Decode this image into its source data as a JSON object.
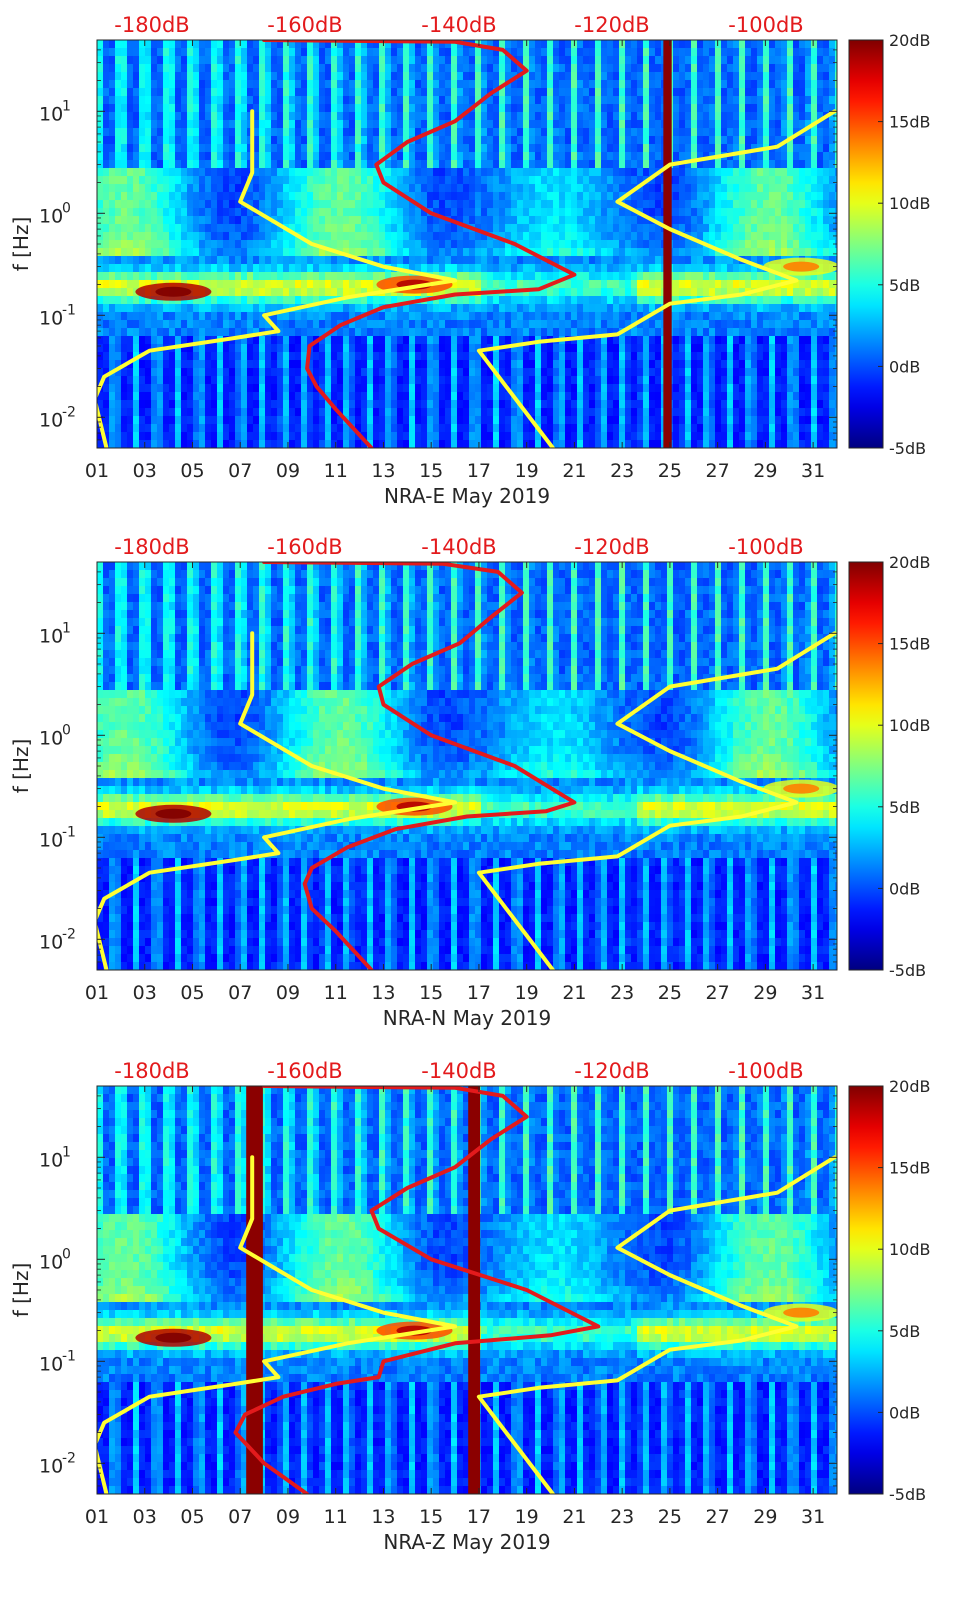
{
  "chart_data": [
    {
      "type": "heatmap",
      "title": "",
      "xlabel": "NRA-E May 2019",
      "ylabel": "f [Hz]",
      "x_ticks": [
        "01",
        "03",
        "05",
        "07",
        "09",
        "11",
        "13",
        "15",
        "17",
        "19",
        "21",
        "23",
        "25",
        "27",
        "29",
        "31"
      ],
      "xlim": [
        1,
        32
      ],
      "y_scale": "log",
      "ylim": [
        0.005,
        50
      ],
      "y_ticks": [
        {
          "base": "10",
          "exp": "-2"
        },
        {
          "base": "10",
          "exp": "-1"
        },
        {
          "base": "10",
          "exp": "0"
        },
        {
          "base": "10",
          "exp": "1"
        }
      ],
      "top_axis_labels": [
        "-180dB",
        "-160dB",
        "-140dB",
        "-120dB",
        "-100dB"
      ],
      "colorbar": {
        "labels": [
          "20dB",
          "15dB",
          "10dB",
          "5dB",
          "0dB",
          "-5dB"
        ],
        "range": [
          -5,
          20
        ],
        "colormap": "jet"
      },
      "saturated_bands": [
        {
          "day": 24.9,
          "width": 0.35
        }
      ],
      "series": [
        {
          "color": "#ffff33",
          "points": [
            [
              1.4,
              0.005
            ],
            [
              0.9,
              0.015
            ],
            [
              1.3,
              0.025
            ],
            [
              3.2,
              0.045
            ],
            [
              6.8,
              0.06
            ],
            [
              8.6,
              0.07
            ],
            [
              8.0,
              0.1
            ],
            [
              11.5,
              0.15
            ],
            [
              16.0,
              0.22
            ],
            [
              13.0,
              0.3
            ],
            [
              10.0,
              0.5
            ],
            [
              7.0,
              1.3
            ],
            [
              7.5,
              2.5
            ],
            [
              7.5,
              10
            ]
          ]
        },
        {
          "color": "#e31a1c",
          "points": [
            [
              12.5,
              0.005
            ],
            [
              11.0,
              0.012
            ],
            [
              10.2,
              0.02
            ],
            [
              9.8,
              0.03
            ],
            [
              9.9,
              0.05
            ],
            [
              11.2,
              0.08
            ],
            [
              13.0,
              0.12
            ],
            [
              16.0,
              0.16
            ],
            [
              19.5,
              0.18
            ],
            [
              21.0,
              0.25
            ],
            [
              18.5,
              0.5
            ],
            [
              15.0,
              1.0
            ],
            [
              13.0,
              2.0
            ],
            [
              12.7,
              3.0
            ],
            [
              14.0,
              5.0
            ],
            [
              16.0,
              8.0
            ],
            [
              17.5,
              15.0
            ],
            [
              19.0,
              25.0
            ],
            [
              18.0,
              40.0
            ],
            [
              16.0,
              48.0
            ],
            [
              8.0,
              50.0
            ]
          ]
        },
        {
          "color": "#ffff33",
          "points": [
            [
              20.1,
              0.005
            ],
            [
              17.0,
              0.045
            ],
            [
              19.5,
              0.055
            ],
            [
              22.8,
              0.065
            ],
            [
              25.0,
              0.13
            ],
            [
              28.0,
              0.16
            ],
            [
              30.3,
              0.22
            ],
            [
              28.0,
              0.35
            ],
            [
              25.0,
              0.7
            ],
            [
              22.8,
              1.3
            ],
            [
              25.0,
              3.0
            ],
            [
              29.5,
              4.5
            ],
            [
              31.9,
              10
            ]
          ]
        }
      ]
    },
    {
      "type": "heatmap",
      "title": "",
      "xlabel": "NRA-N May 2019",
      "ylabel": "f [Hz]",
      "x_ticks": [
        "01",
        "03",
        "05",
        "07",
        "09",
        "11",
        "13",
        "15",
        "17",
        "19",
        "21",
        "23",
        "25",
        "27",
        "29",
        "31"
      ],
      "xlim": [
        1,
        32
      ],
      "y_scale": "log",
      "ylim": [
        0.005,
        50
      ],
      "y_ticks": [
        {
          "base": "10",
          "exp": "-2"
        },
        {
          "base": "10",
          "exp": "-1"
        },
        {
          "base": "10",
          "exp": "0"
        },
        {
          "base": "10",
          "exp": "1"
        }
      ],
      "top_axis_labels": [
        "-180dB",
        "-160dB",
        "-140dB",
        "-120dB",
        "-100dB"
      ],
      "colorbar": {
        "labels": [
          "20dB",
          "15dB",
          "10dB",
          "5dB",
          "0dB",
          "-5dB"
        ],
        "range": [
          -5,
          20
        ],
        "colormap": "jet"
      },
      "saturated_bands": [],
      "series": [
        {
          "color": "#ffff33",
          "points": [
            [
              1.4,
              0.005
            ],
            [
              0.9,
              0.015
            ],
            [
              1.3,
              0.025
            ],
            [
              3.2,
              0.045
            ],
            [
              6.8,
              0.06
            ],
            [
              8.6,
              0.07
            ],
            [
              8.0,
              0.1
            ],
            [
              11.5,
              0.15
            ],
            [
              16.0,
              0.22
            ],
            [
              13.0,
              0.3
            ],
            [
              10.0,
              0.5
            ],
            [
              7.0,
              1.3
            ],
            [
              7.5,
              2.5
            ],
            [
              7.5,
              10
            ]
          ]
        },
        {
          "color": "#e31a1c",
          "points": [
            [
              12.5,
              0.005
            ],
            [
              11.0,
              0.012
            ],
            [
              10.0,
              0.02
            ],
            [
              9.7,
              0.035
            ],
            [
              10.0,
              0.05
            ],
            [
              11.5,
              0.08
            ],
            [
              13.5,
              0.12
            ],
            [
              16.5,
              0.16
            ],
            [
              19.8,
              0.18
            ],
            [
              21.0,
              0.22
            ],
            [
              18.5,
              0.5
            ],
            [
              15.0,
              1.0
            ],
            [
              13.0,
              2.0
            ],
            [
              12.8,
              3.0
            ],
            [
              14.2,
              5.0
            ],
            [
              16.2,
              8.0
            ],
            [
              17.6,
              15.0
            ],
            [
              18.8,
              25.0
            ],
            [
              17.8,
              40.0
            ],
            [
              15.5,
              48.0
            ],
            [
              8.0,
              50.0
            ]
          ]
        },
        {
          "color": "#ffff33",
          "points": [
            [
              20.1,
              0.005
            ],
            [
              17.0,
              0.045
            ],
            [
              19.5,
              0.055
            ],
            [
              22.8,
              0.065
            ],
            [
              25.0,
              0.13
            ],
            [
              28.0,
              0.16
            ],
            [
              30.3,
              0.22
            ],
            [
              28.0,
              0.35
            ],
            [
              25.0,
              0.7
            ],
            [
              22.8,
              1.3
            ],
            [
              25.0,
              3.0
            ],
            [
              29.5,
              4.5
            ],
            [
              31.9,
              10
            ]
          ]
        }
      ]
    },
    {
      "type": "heatmap",
      "title": "",
      "xlabel": "NRA-Z May 2019",
      "ylabel": "f [Hz]",
      "x_ticks": [
        "01",
        "03",
        "05",
        "07",
        "09",
        "11",
        "13",
        "15",
        "17",
        "19",
        "21",
        "23",
        "25",
        "27",
        "29",
        "31"
      ],
      "xlim": [
        1,
        32
      ],
      "y_scale": "log",
      "ylim": [
        0.005,
        50
      ],
      "y_ticks": [
        {
          "base": "10",
          "exp": "-2"
        },
        {
          "base": "10",
          "exp": "-1"
        },
        {
          "base": "10",
          "exp": "0"
        },
        {
          "base": "10",
          "exp": "1"
        }
      ],
      "top_axis_labels": [
        "-180dB",
        "-160dB",
        "-140dB",
        "-120dB",
        "-100dB"
      ],
      "colorbar": {
        "labels": [
          "20dB",
          "15dB",
          "10dB",
          "5dB",
          "0dB",
          "-5dB"
        ],
        "range": [
          -5,
          20
        ],
        "colormap": "jet"
      },
      "saturated_bands": [
        {
          "day": 7.6,
          "width": 0.7
        },
        {
          "day": 16.8,
          "width": 0.5
        }
      ],
      "series": [
        {
          "color": "#ffff33",
          "points": [
            [
              1.4,
              0.005
            ],
            [
              0.9,
              0.015
            ],
            [
              1.3,
              0.025
            ],
            [
              3.2,
              0.045
            ],
            [
              6.8,
              0.06
            ],
            [
              8.6,
              0.07
            ],
            [
              8.0,
              0.1
            ],
            [
              11.5,
              0.15
            ],
            [
              16.0,
              0.22
            ],
            [
              13.0,
              0.3
            ],
            [
              10.0,
              0.5
            ],
            [
              7.0,
              1.3
            ],
            [
              7.5,
              2.5
            ],
            [
              7.5,
              10
            ]
          ]
        },
        {
          "color": "#e31a1c",
          "points": [
            [
              9.8,
              0.005
            ],
            [
              8.0,
              0.01
            ],
            [
              6.8,
              0.02
            ],
            [
              7.2,
              0.03
            ],
            [
              8.8,
              0.045
            ],
            [
              11.0,
              0.06
            ],
            [
              12.8,
              0.07
            ],
            [
              13.0,
              0.1
            ],
            [
              16.0,
              0.15
            ],
            [
              20.0,
              0.18
            ],
            [
              22.0,
              0.22
            ],
            [
              19.0,
              0.5
            ],
            [
              15.0,
              1.0
            ],
            [
              12.8,
              2.0
            ],
            [
              12.5,
              3.0
            ],
            [
              14.0,
              5.0
            ],
            [
              16.0,
              8.0
            ],
            [
              17.5,
              15.0
            ],
            [
              19.0,
              25.0
            ],
            [
              18.0,
              40.0
            ],
            [
              16.0,
              48.0
            ],
            [
              8.0,
              50.0
            ]
          ]
        },
        {
          "color": "#ffff33",
          "points": [
            [
              20.1,
              0.005
            ],
            [
              17.0,
              0.045
            ],
            [
              19.5,
              0.055
            ],
            [
              22.8,
              0.065
            ],
            [
              25.0,
              0.13
            ],
            [
              28.0,
              0.16
            ],
            [
              30.3,
              0.22
            ],
            [
              28.0,
              0.35
            ],
            [
              25.0,
              0.7
            ],
            [
              22.8,
              1.3
            ],
            [
              25.0,
              3.0
            ],
            [
              29.5,
              4.5
            ],
            [
              31.9,
              10
            ]
          ]
        }
      ]
    }
  ]
}
